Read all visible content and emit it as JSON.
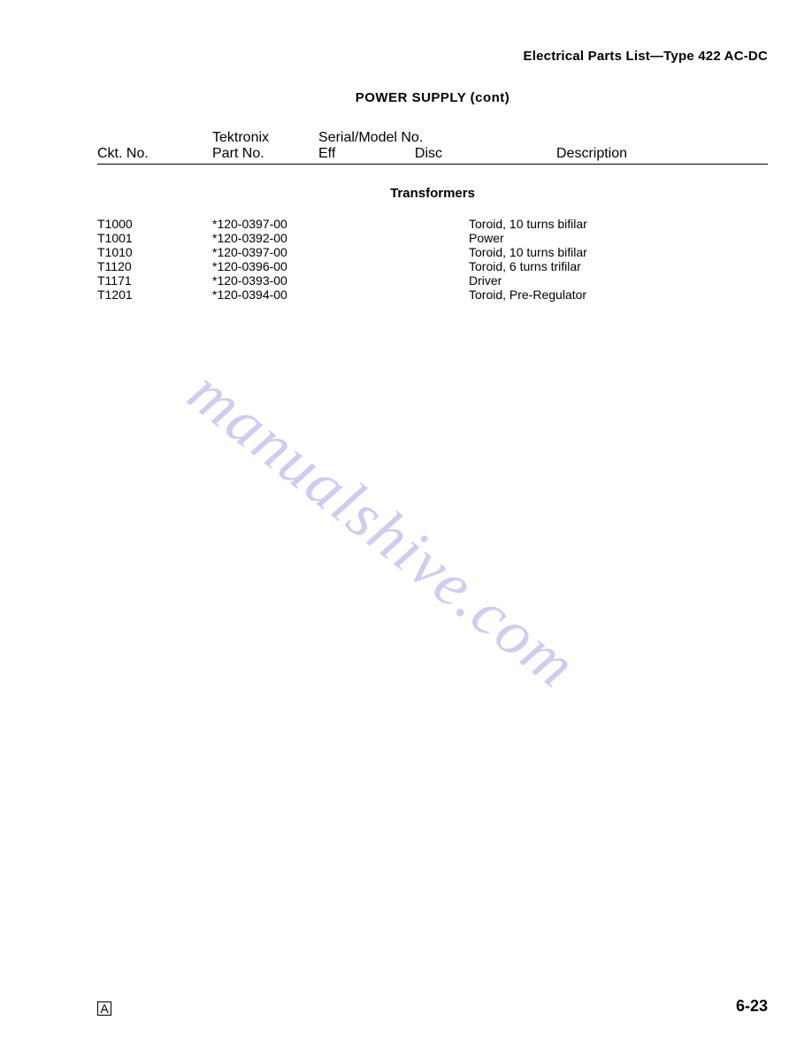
{
  "header": {
    "doc_title": "Electrical Parts List—Type 422 AC-DC"
  },
  "section": {
    "title": "POWER SUPPLY (cont)"
  },
  "table": {
    "columns": {
      "ckt": "Ckt. No.",
      "part_top": "Tektronix",
      "part_bottom": "Part No.",
      "serial_top": "Serial/Model No.",
      "serial_eff": "Eff",
      "serial_disc": "Disc",
      "desc": "Description"
    },
    "subsection": "Transformers",
    "rows": [
      {
        "ckt": "T1000",
        "part": "*120-0397-00",
        "desc": "Toroid, 10 turns bifilar"
      },
      {
        "ckt": "T1001",
        "part": "*120-0392-00",
        "desc": "Power"
      },
      {
        "ckt": "T1010",
        "part": "*120-0397-00",
        "desc": "Toroid, 10 turns bifilar"
      },
      {
        "ckt": "T1120",
        "part": "*120-0396-00",
        "desc": "Toroid, 6 turns trifilar"
      },
      {
        "ckt": "T1171",
        "part": "*120-0393-00",
        "desc": "Driver"
      },
      {
        "ckt": "T1201",
        "part": "*120-0394-00",
        "desc": "Toroid, Pre-Regulator"
      }
    ]
  },
  "watermark": "manualshive.com",
  "footer": {
    "left": "A",
    "right": "6-23"
  }
}
